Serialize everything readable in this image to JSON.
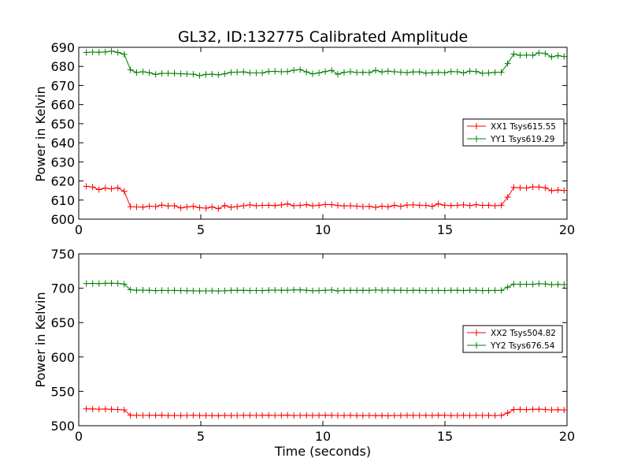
{
  "colors": {
    "xx": "#ff0000",
    "yy": "#008000",
    "axes": "#000000",
    "background": "#ffffff"
  },
  "chart_data": [
    {
      "type": "line",
      "title": "GL32, ID:132775 Calibrated Amplitude",
      "xlabel": "",
      "ylabel": "Power in Kelvin",
      "xlim": [
        0,
        20
      ],
      "ylim": [
        600,
        690
      ],
      "xticks": [
        "0",
        "5",
        "10",
        "15",
        "20"
      ],
      "yticks": [
        "600",
        "610",
        "620",
        "630",
        "640",
        "650",
        "660",
        "670",
        "680",
        "690"
      ],
      "legend_position": "right",
      "marker": "+",
      "x": [
        0.31,
        0.57,
        0.83,
        1.09,
        1.34,
        1.6,
        1.86,
        2.12,
        2.37,
        2.63,
        2.89,
        3.15,
        3.4,
        3.66,
        3.92,
        4.18,
        4.43,
        4.69,
        4.95,
        5.21,
        5.46,
        5.72,
        5.98,
        6.24,
        6.49,
        6.75,
        7.01,
        7.27,
        7.52,
        7.78,
        8.04,
        8.3,
        8.55,
        8.81,
        9.07,
        9.33,
        9.58,
        9.84,
        10.1,
        10.36,
        10.61,
        10.87,
        11.13,
        11.39,
        11.64,
        11.9,
        12.16,
        12.42,
        12.67,
        12.93,
        13.19,
        13.45,
        13.7,
        13.96,
        14.22,
        14.48,
        14.73,
        14.99,
        15.25,
        15.51,
        15.76,
        16.02,
        16.28,
        16.54,
        16.79,
        17.05,
        17.31,
        17.57,
        17.82,
        18.08,
        18.34,
        18.6,
        18.85,
        19.11,
        19.37,
        19.63,
        19.88
      ],
      "series": [
        {
          "name": "XX1 Tsys615.55",
          "color": "#ff0000",
          "values": [
            617.2,
            616.8,
            615.5,
            616.3,
            615.9,
            616.4,
            614.6,
            606.5,
            606.4,
            606.3,
            606.8,
            606.6,
            607.4,
            606.9,
            607.0,
            605.9,
            606.4,
            606.7,
            606.0,
            605.8,
            606.4,
            605.5,
            607.1,
            606.2,
            606.6,
            607.0,
            607.5,
            607.0,
            607.2,
            607.3,
            607.1,
            607.5,
            608.0,
            607.0,
            607.2,
            607.6,
            607.0,
            607.3,
            607.7,
            607.6,
            607.2,
            606.9,
            607.0,
            606.8,
            606.6,
            606.7,
            606.2,
            606.8,
            606.5,
            607.2,
            606.7,
            607.4,
            607.5,
            607.3,
            607.2,
            606.7,
            608.0,
            607.3,
            607.1,
            607.2,
            607.5,
            607.1,
            607.6,
            607.2,
            607.3,
            607.0,
            607.3,
            611.5,
            616.6,
            616.4,
            616.3,
            616.9,
            616.8,
            616.4,
            614.9,
            615.2,
            615.0
          ]
        },
        {
          "name": "YY1 Tsys619.29",
          "color": "#008000",
          "values": [
            687.3,
            687.5,
            687.4,
            687.6,
            688.0,
            687.3,
            686.4,
            678.2,
            676.8,
            677.2,
            676.7,
            675.8,
            676.3,
            676.4,
            676.3,
            676.1,
            676.0,
            675.9,
            675.2,
            675.8,
            675.9,
            675.6,
            676.1,
            676.9,
            677.0,
            677.1,
            676.6,
            676.6,
            676.6,
            677.3,
            677.4,
            677.2,
            677.3,
            678.0,
            678.3,
            677.1,
            676.1,
            676.6,
            677.3,
            677.9,
            675.9,
            676.9,
            677.2,
            676.8,
            676.9,
            676.8,
            677.9,
            677.1,
            677.5,
            677.2,
            677.0,
            676.7,
            677.1,
            677.1,
            676.5,
            676.7,
            676.9,
            676.7,
            677.3,
            677.2,
            676.6,
            677.5,
            677.3,
            676.4,
            676.6,
            676.9,
            676.9,
            681.5,
            686.5,
            685.8,
            685.9,
            685.8,
            687.1,
            686.7,
            685.0,
            685.6,
            685.2
          ]
        }
      ]
    },
    {
      "type": "line",
      "title": "",
      "xlabel": "Time (seconds)",
      "ylabel": "Power in Kelvin",
      "xlim": [
        0,
        20
      ],
      "ylim": [
        500,
        750
      ],
      "xticks": [
        "0",
        "5",
        "10",
        "15",
        "20"
      ],
      "yticks": [
        "500",
        "550",
        "600",
        "650",
        "700",
        "750"
      ],
      "legend_position": "right",
      "marker": "+",
      "x": [
        0.31,
        0.57,
        0.83,
        1.09,
        1.34,
        1.6,
        1.86,
        2.12,
        2.37,
        2.63,
        2.89,
        3.15,
        3.4,
        3.66,
        3.92,
        4.18,
        4.43,
        4.69,
        4.95,
        5.21,
        5.46,
        5.72,
        5.98,
        6.24,
        6.49,
        6.75,
        7.01,
        7.27,
        7.52,
        7.78,
        8.04,
        8.3,
        8.55,
        8.81,
        9.07,
        9.33,
        9.58,
        9.84,
        10.1,
        10.36,
        10.61,
        10.87,
        11.13,
        11.39,
        11.64,
        11.9,
        12.16,
        12.42,
        12.67,
        12.93,
        13.19,
        13.45,
        13.7,
        13.96,
        14.22,
        14.48,
        14.73,
        14.99,
        15.25,
        15.51,
        15.76,
        16.02,
        16.28,
        16.54,
        16.79,
        17.05,
        17.31,
        17.57,
        17.82,
        18.08,
        18.34,
        18.6,
        18.85,
        19.11,
        19.37,
        19.63,
        19.88
      ],
      "series": [
        {
          "name": "XX2 Tsys504.82",
          "color": "#ff0000",
          "values": [
            524.5,
            524.3,
            524.0,
            524.2,
            523.8,
            523.5,
            523.0,
            515.2,
            515.0,
            514.9,
            515.1,
            515.0,
            515.4,
            514.8,
            514.9,
            514.7,
            514.9,
            515.0,
            514.8,
            514.9,
            514.7,
            514.5,
            515.0,
            514.8,
            514.9,
            515.0,
            515.1,
            514.9,
            515.0,
            515.2,
            514.9,
            515.1,
            515.3,
            514.8,
            514.9,
            515.0,
            514.8,
            515.0,
            515.2,
            515.1,
            514.9,
            514.8,
            515.0,
            514.7,
            514.8,
            514.9,
            514.6,
            514.8,
            514.5,
            514.9,
            514.8,
            515.0,
            515.1,
            514.9,
            515.0,
            514.7,
            515.3,
            515.0,
            514.8,
            514.9,
            515.0,
            514.8,
            515.0,
            514.9,
            515.0,
            514.8,
            515.0,
            518.5,
            523.5,
            523.6,
            523.4,
            523.8,
            524.0,
            523.5,
            523.0,
            523.2,
            522.8
          ]
        },
        {
          "name": "YY2 Tsys676.54",
          "color": "#008000",
          "values": [
            706.8,
            707.0,
            706.7,
            707.1,
            707.3,
            707.0,
            706.0,
            697.8,
            697.0,
            697.2,
            696.9,
            696.5,
            696.8,
            696.7,
            696.8,
            696.5,
            696.4,
            696.3,
            695.9,
            696.1,
            696.2,
            695.9,
            696.2,
            696.8,
            696.9,
            697.0,
            696.6,
            696.7,
            696.6,
            697.1,
            697.2,
            697.0,
            697.1,
            697.5,
            697.6,
            696.9,
            696.3,
            696.6,
            697.0,
            697.4,
            696.3,
            696.8,
            697.0,
            696.8,
            696.9,
            696.8,
            697.4,
            697.0,
            697.2,
            697.0,
            696.9,
            696.7,
            697.0,
            697.0,
            696.6,
            696.7,
            696.8,
            696.7,
            697.0,
            697.0,
            696.6,
            697.1,
            697.0,
            696.5,
            696.6,
            696.8,
            696.8,
            701.5,
            706.0,
            705.7,
            705.8,
            705.7,
            706.6,
            706.3,
            705.2,
            705.6,
            705.3
          ]
        }
      ]
    }
  ]
}
